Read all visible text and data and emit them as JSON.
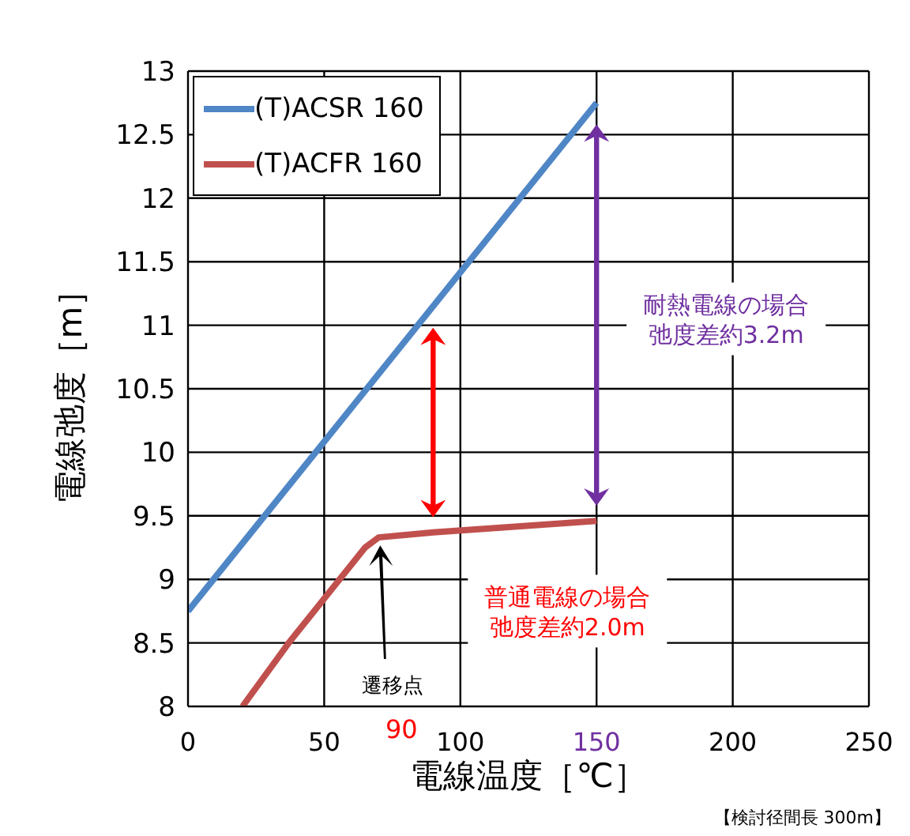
{
  "chart_data": {
    "type": "line",
    "xlabel": "電線温度［℃］",
    "ylabel": "電線弛度［m］",
    "series": [
      {
        "name": "(T)ACSR 160",
        "color": "#4f86c6",
        "x": [
          0,
          150
        ],
        "values": [
          8.75,
          12.75
        ]
      },
      {
        "name": "(T)ACFR 160",
        "color": "#c0504d",
        "x": [
          20,
          37,
          65,
          70,
          90,
          150
        ],
        "values": [
          8,
          8.5,
          9.25,
          9.33,
          9.37,
          9.46
        ]
      }
    ],
    "xlim": [
      0,
      250
    ],
    "xticks": [
      0,
      50,
      100,
      150,
      200,
      250
    ],
    "ylim": [
      8,
      13
    ],
    "yticks": [
      8,
      8.5,
      9,
      9.5,
      10,
      10.5,
      11,
      11.5,
      12,
      12.5,
      13
    ],
    "grid": true,
    "legend": "top left",
    "marker": "none",
    "line_style": "solid",
    "annotations": [
      "耐熱電線の場合弛度差約3.2m",
      "普通電線の場合弛度差約2.0m",
      "遷移点",
      "90",
      "【検討径間長 300m】"
    ]
  }
}
